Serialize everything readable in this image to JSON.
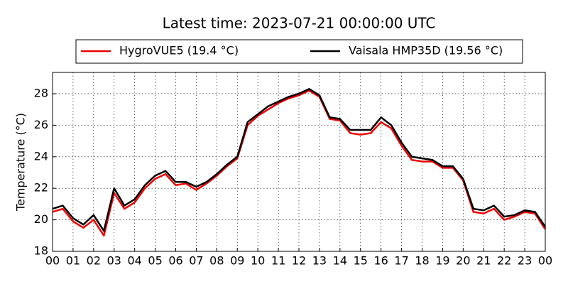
{
  "chart_data": {
    "type": "line",
    "title": "Latest time: 2023-07-21 00:00:00 UTC",
    "y_label": "Temperature (°C)",
    "x": [
      0,
      0.5,
      1,
      1.5,
      2,
      2.5,
      3,
      3.5,
      4,
      4.5,
      5,
      5.5,
      6,
      6.5,
      7,
      7.5,
      8,
      8.5,
      9,
      9.5,
      10,
      10.5,
      11,
      11.5,
      12,
      12.5,
      13,
      13.5,
      14,
      14.5,
      15,
      15.5,
      16,
      16.5,
      17,
      17.5,
      18,
      18.5,
      19,
      19.5,
      20,
      20.5,
      21,
      21.5,
      22,
      22.5,
      23,
      23.5,
      24
    ],
    "series": [
      {
        "name": "HygroVUE5 (19.4 °C)",
        "color": "#ee0000",
        "values": [
          20.5,
          20.7,
          19.9,
          19.5,
          20.0,
          19.0,
          21.7,
          20.7,
          21.1,
          22.0,
          22.6,
          22.9,
          22.2,
          22.3,
          21.9,
          22.3,
          22.8,
          23.4,
          23.9,
          26.0,
          26.6,
          27.0,
          27.4,
          27.7,
          27.9,
          28.2,
          27.8,
          26.4,
          26.3,
          25.5,
          25.4,
          25.5,
          26.2,
          25.8,
          24.7,
          23.8,
          23.7,
          23.7,
          23.3,
          23.3,
          22.5,
          20.5,
          20.4,
          20.7,
          20.0,
          20.2,
          20.5,
          20.4,
          19.4
        ]
      },
      {
        "name": "Vaisala HMP35D (19.56 °C)",
        "color": "#000000",
        "values": [
          20.7,
          20.9,
          20.1,
          19.7,
          20.3,
          19.3,
          22.0,
          20.9,
          21.3,
          22.2,
          22.8,
          23.1,
          22.4,
          22.4,
          22.1,
          22.4,
          22.9,
          23.5,
          24.0,
          26.2,
          26.7,
          27.2,
          27.5,
          27.8,
          28.0,
          28.3,
          27.9,
          26.5,
          26.4,
          25.7,
          25.7,
          25.7,
          26.5,
          26.0,
          24.9,
          24.0,
          23.9,
          23.8,
          23.4,
          23.4,
          22.6,
          20.7,
          20.6,
          20.9,
          20.2,
          20.3,
          20.6,
          20.5,
          19.56
        ]
      }
    ],
    "xlim": [
      0,
      24
    ],
    "xticks": [
      {
        "value": 0,
        "label": "00"
      },
      {
        "value": 1,
        "label": "01"
      },
      {
        "value": 2,
        "label": "02"
      },
      {
        "value": 3,
        "label": "03"
      },
      {
        "value": 4,
        "label": "04"
      },
      {
        "value": 5,
        "label": "05"
      },
      {
        "value": 6,
        "label": "06"
      },
      {
        "value": 7,
        "label": "07"
      },
      {
        "value": 8,
        "label": "08"
      },
      {
        "value": 9,
        "label": "09"
      },
      {
        "value": 10,
        "label": "10"
      },
      {
        "value": 11,
        "label": "11"
      },
      {
        "value": 12,
        "label": "12"
      },
      {
        "value": 13,
        "label": "13"
      },
      {
        "value": 14,
        "label": "14"
      },
      {
        "value": 15,
        "label": "15"
      },
      {
        "value": 16,
        "label": "16"
      },
      {
        "value": 17,
        "label": "17"
      },
      {
        "value": 18,
        "label": "18"
      },
      {
        "value": 19,
        "label": "19"
      },
      {
        "value": 20,
        "label": "20"
      },
      {
        "value": 21,
        "label": "21"
      },
      {
        "value": 22,
        "label": "22"
      },
      {
        "value": 23,
        "label": "23"
      },
      {
        "value": 24,
        "label": "00"
      }
    ],
    "ylim": [
      18,
      29.35
    ],
    "yticks": [
      18,
      20,
      22,
      24,
      26,
      28
    ],
    "grid": true,
    "legend": "top"
  }
}
